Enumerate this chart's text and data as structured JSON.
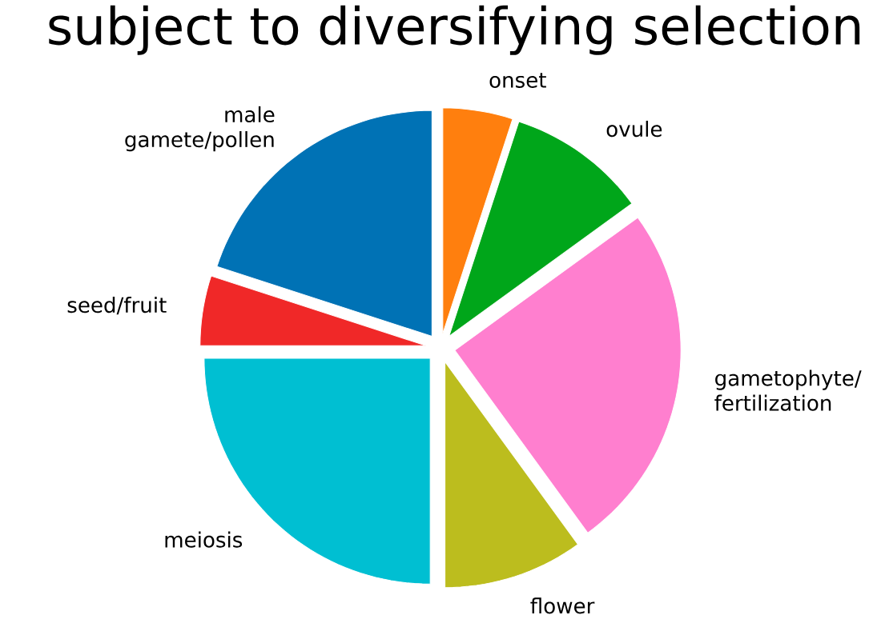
{
  "chart_data": {
    "type": "pie",
    "title": "subject to diversifying selection",
    "categories": [
      "onset",
      "ovule",
      "gametophyte/ fertilization",
      "flower",
      "meiosis",
      "seed/fruit",
      "male gamete/pollen"
    ],
    "values": [
      5,
      10,
      25,
      10,
      25,
      5,
      20
    ],
    "colors": [
      "#ff7f0e",
      "#00a61a",
      "#ff7fcf",
      "#bcbd1e",
      "#00bfd2",
      "#f02828",
      "#0072b5"
    ]
  }
}
